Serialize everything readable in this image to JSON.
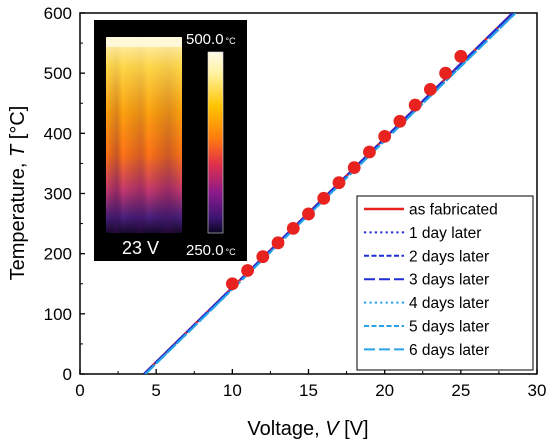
{
  "chart_data": {
    "type": "line",
    "xlabel_main": "Voltage, ",
    "xlabel_var": "V",
    "xlabel_unit": " [V]",
    "ylabel_main": "Temperature, ",
    "ylabel_var": "T",
    "ylabel_unit": " [°C]",
    "xlim": [
      0,
      30
    ],
    "ylim": [
      0,
      600
    ],
    "x_ticks": [
      "0",
      "5",
      "10",
      "15",
      "20",
      "25",
      "30"
    ],
    "y_ticks": [
      "0",
      "100",
      "200",
      "300",
      "400",
      "500",
      "600"
    ],
    "grid": false,
    "legend_position": "bottom-right",
    "series": [
      {
        "name": "as fabricated",
        "style": "solid",
        "color": "#e8231f",
        "x": [
          4.2,
          28.4
        ],
        "y": [
          0,
          600
        ]
      },
      {
        "name": "1 day later",
        "style": "dotted",
        "color": "#1f2fd6",
        "x": [
          4.2,
          28.4
        ],
        "y": [
          0,
          600
        ]
      },
      {
        "name": "2 days later",
        "style": "short-dash",
        "color": "#1f2fd6",
        "x": [
          4.2,
          28.4
        ],
        "y": [
          0,
          600
        ]
      },
      {
        "name": "3 days later",
        "style": "long-dash",
        "color": "#1f2fd6",
        "x": [
          4.2,
          28.4
        ],
        "y": [
          0,
          600
        ]
      },
      {
        "name": "4 days later",
        "style": "dotted",
        "color": "#29a3e8",
        "x": [
          4.3,
          28.6
        ],
        "y": [
          0,
          600
        ]
      },
      {
        "name": "5 days later",
        "style": "short-dash",
        "color": "#29a3e8",
        "x": [
          4.3,
          28.6
        ],
        "y": [
          0,
          600
        ]
      },
      {
        "name": "6 days later",
        "style": "long-dash",
        "color": "#29a3e8",
        "x": [
          4.3,
          28.6
        ],
        "y": [
          0,
          600
        ]
      }
    ],
    "markers": {
      "color": "#e8231f",
      "x": [
        10,
        11,
        12,
        13,
        14,
        15,
        16,
        17,
        18,
        19,
        20,
        21,
        22,
        23,
        24,
        25
      ],
      "y": [
        150,
        172,
        195,
        218,
        242,
        266,
        292,
        318,
        343,
        369,
        395,
        420,
        447,
        473,
        500,
        528
      ]
    },
    "inset": {
      "max_label": "500.0",
      "min_label": "250.0",
      "unit": "°C",
      "voltage_label": "23 V"
    }
  }
}
